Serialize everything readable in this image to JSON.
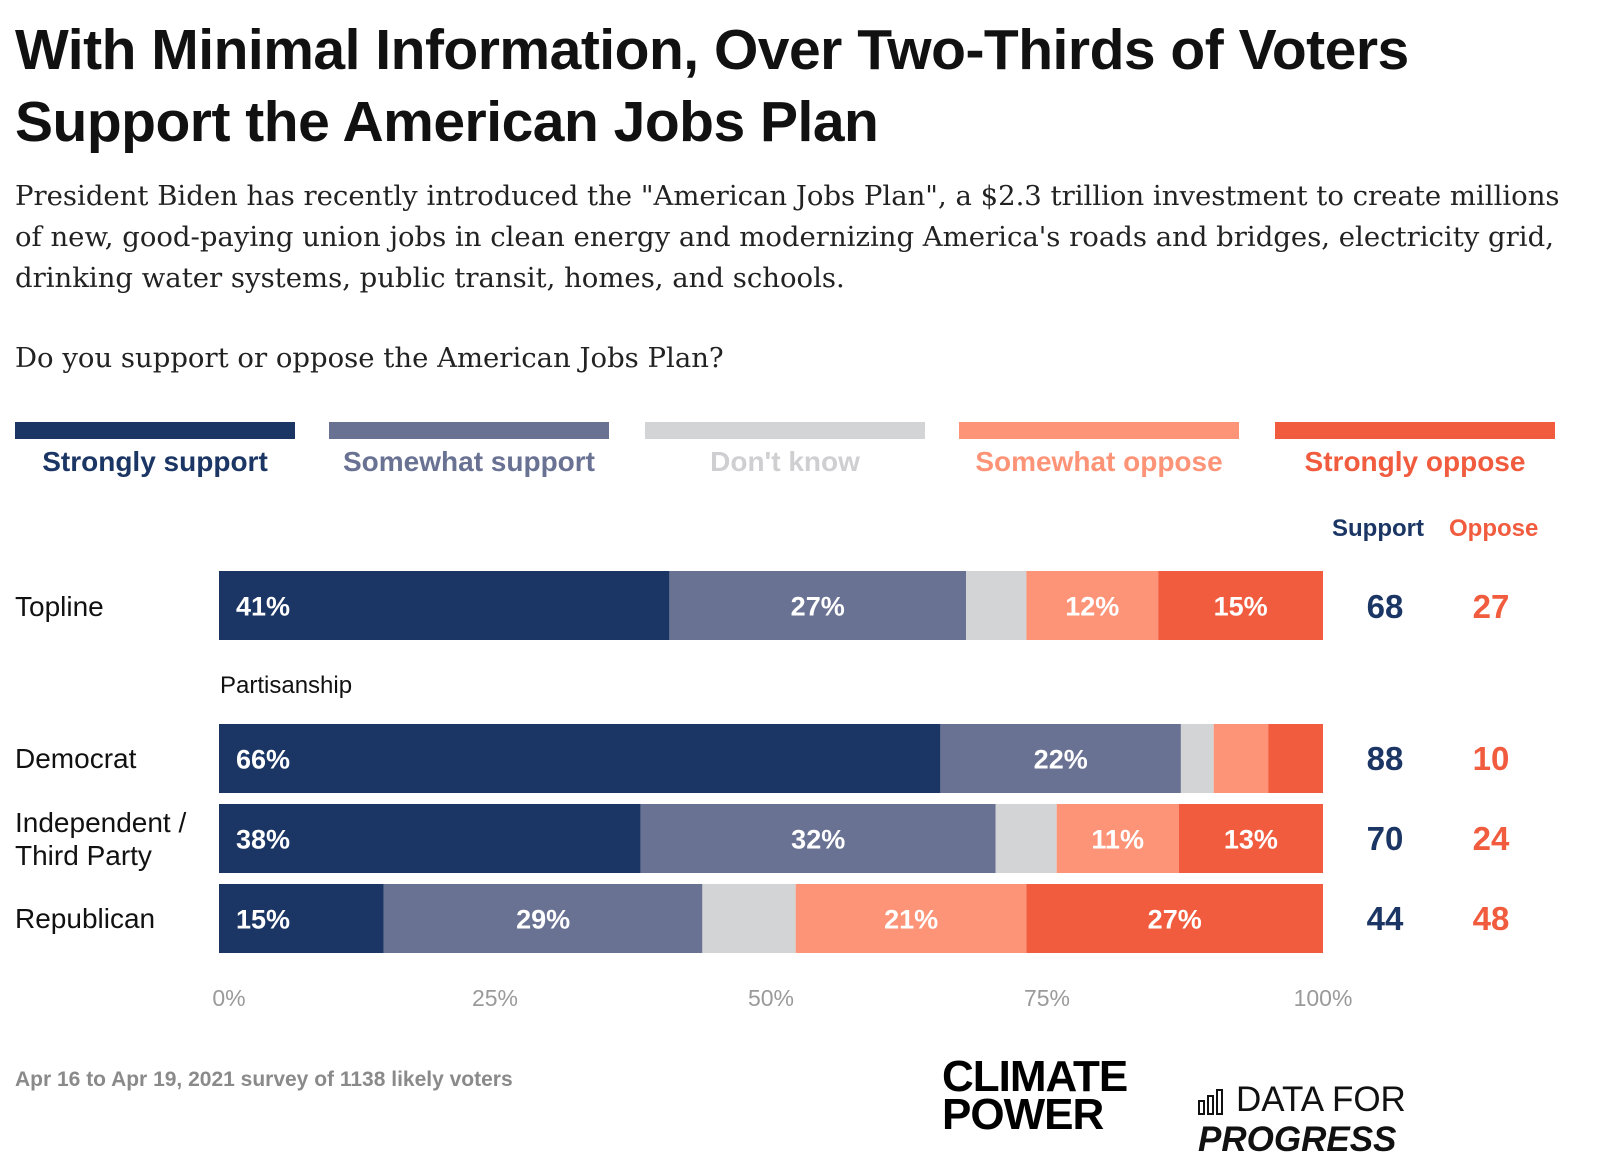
{
  "title": "With Minimal Information, Over Two-Thirds of Voters Support the American Jobs Plan",
  "subtitle": "President Biden has recently introduced the \"American Jobs Plan\", a $2.3 trillion investment to create millions of new, good-paying union jobs in clean energy and modernizing America's roads and bridges, electricity grid, drinking water systems, public transit, homes, and schools.",
  "question": "Do you support or oppose the American Jobs Plan?",
  "legend": [
    {
      "label": "Strongly support",
      "color": "#1b3664"
    },
    {
      "label": "Somewhat support",
      "color": "#6a7293"
    },
    {
      "label": "Don't know",
      "color": "#d3d4d6"
    },
    {
      "label": "Somewhat oppose",
      "color": "#fd9478"
    },
    {
      "label": "Strongly oppose",
      "color": "#f15b3e"
    }
  ],
  "net_headers": {
    "support": "Support",
    "oppose": "Oppose"
  },
  "section_label": "Partisanship",
  "rows": [
    {
      "label": "Topline",
      "support": "68",
      "oppose": "27"
    },
    {
      "label": "Democrat",
      "support": "88",
      "oppose": "10"
    },
    {
      "label": "Independent / Third Party",
      "support": "70",
      "oppose": "24"
    },
    {
      "label": "Republican",
      "support": "44",
      "oppose": "48"
    }
  ],
  "chart_data": {
    "type": "bar",
    "orientation": "horizontal-stacked-100",
    "categories": [
      "Topline",
      "Democrat",
      "Independent / Third Party",
      "Republican"
    ],
    "series": [
      {
        "name": "Strongly support",
        "values": [
          41,
          66,
          38,
          15
        ],
        "labels": [
          "41%",
          "66%",
          "38%",
          "15%"
        ]
      },
      {
        "name": "Somewhat support",
        "values": [
          27,
          22,
          32,
          29
        ],
        "labels": [
          "27%",
          "22%",
          "32%",
          "29%"
        ]
      },
      {
        "name": "Don't know",
        "values": [
          5.5,
          3,
          5.5,
          8.5
        ],
        "labels": [
          "",
          "",
          "",
          ""
        ]
      },
      {
        "name": "Somewhat oppose",
        "values": [
          12,
          5,
          11,
          21
        ],
        "labels": [
          "12%",
          "",
          "11%",
          "21%"
        ]
      },
      {
        "name": "Strongly oppose",
        "values": [
          15,
          5,
          13,
          27
        ],
        "labels": [
          "15%",
          "",
          "13%",
          "27%"
        ]
      }
    ],
    "xlim": [
      0,
      100
    ],
    "xticks": [
      "0%",
      "25%",
      "50%",
      "75%",
      "100%"
    ]
  },
  "footnote": "Apr 16 to Apr 19, 2021 survey of 1138 likely voters",
  "logos": {
    "climate_power": [
      "CLIMATE",
      "POWER"
    ],
    "dfp_prefix": "DATA FOR ",
    "dfp_suffix": "PROGRESS"
  }
}
